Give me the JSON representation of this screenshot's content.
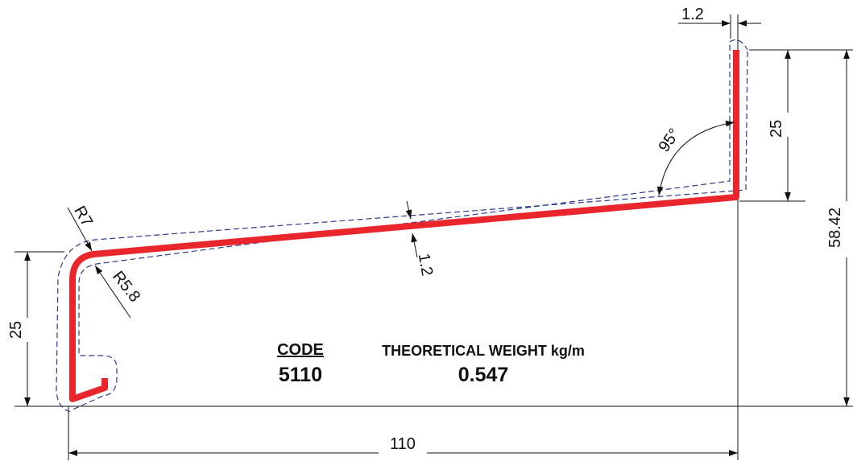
{
  "dimensions": {
    "thickness_top": "1.2",
    "flange_height_right": "25",
    "total_height": "58.42",
    "angle": "95°",
    "thickness_middle": "1.2",
    "outer_radius": "R7",
    "inner_radius": "R5.8",
    "flange_height_left": "25",
    "total_width": "110"
  },
  "info": {
    "code_label": "CODE",
    "code_value": "5110",
    "weight_label": "THEORETICAL WEIGHT kg/m",
    "weight_value": "0.547"
  },
  "colors": {
    "profile": "#e8262b",
    "tolerance": "#2b3a8f",
    "lines": "#111111"
  }
}
